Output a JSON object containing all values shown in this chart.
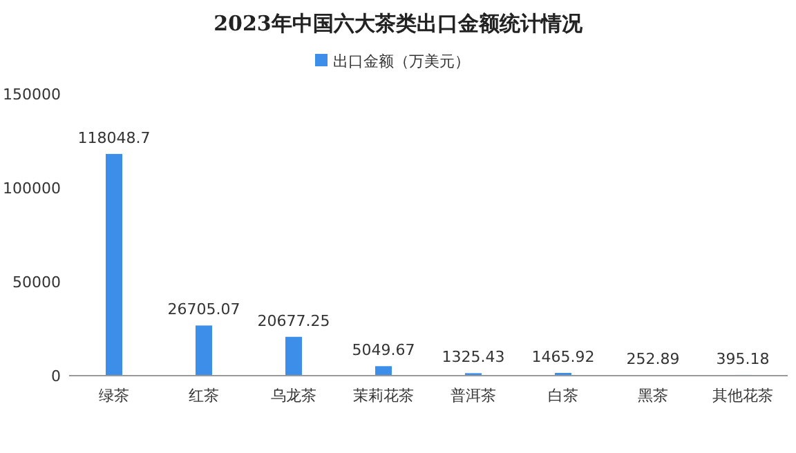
{
  "chart_data": {
    "type": "bar",
    "title": "2023年中国六大茶类出口金额统计情况",
    "categories": [
      "绿茶",
      "红茶",
      "乌龙茶",
      "茉莉花茶",
      "普洱茶",
      "白茶",
      "黑茶",
      "其他花茶"
    ],
    "series": [
      {
        "name": "出口金额（万美元）",
        "color": "#3d8ee8",
        "values": [
          118048.7,
          26705.07,
          20677.25,
          5049.67,
          1325.43,
          1465.92,
          252.89,
          395.18
        ]
      }
    ],
    "ylim": [
      0,
      150000
    ],
    "yticks": [
      0,
      50000,
      100000,
      150000
    ],
    "data_labels": true,
    "legend": "top",
    "grid": false
  }
}
